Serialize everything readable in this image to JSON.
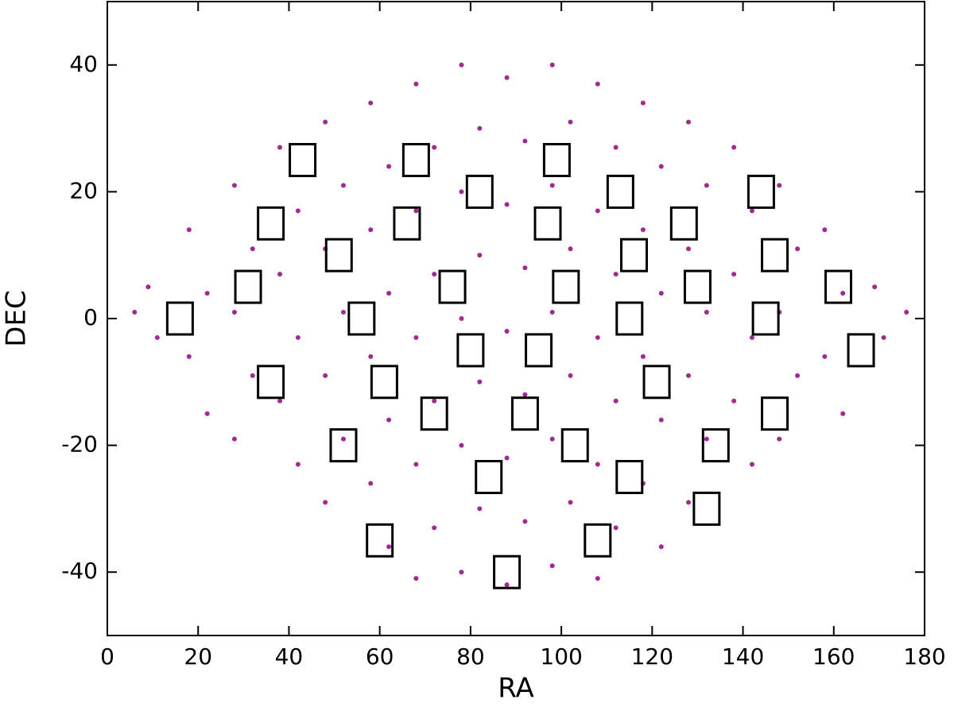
{
  "chart_data": {
    "type": "scatter",
    "x_label": "RA",
    "y_label": "DEC",
    "xlim": [
      0,
      180
    ],
    "ylim": [
      -50,
      50
    ],
    "xticks": [
      0,
      20,
      40,
      60,
      80,
      100,
      120,
      140,
      160,
      180
    ],
    "yticks": [
      -40,
      -20,
      0,
      20,
      40
    ],
    "series": [
      {
        "color": "#a3288f",
        "marker": "dot",
        "x": [
          6,
          9,
          11,
          18,
          22,
          18,
          22,
          28,
          32,
          28,
          32,
          28,
          38,
          42,
          38,
          42,
          38,
          42,
          48,
          52,
          48,
          52,
          48,
          52,
          48,
          58,
          62,
          58,
          62,
          58,
          62,
          58,
          62,
          68,
          72,
          68,
          72,
          68,
          72,
          68,
          72,
          68,
          78,
          82,
          78,
          82,
          78,
          82,
          78,
          82,
          78,
          88,
          92,
          88,
          92,
          88,
          92,
          88,
          92,
          88,
          98,
          102,
          98,
          102,
          98,
          102,
          98,
          102,
          98,
          108,
          112,
          108,
          112,
          108,
          112,
          108,
          112,
          108,
          118,
          122,
          118,
          122,
          118,
          122,
          118,
          122,
          128,
          132,
          128,
          132,
          128,
          132,
          128,
          138,
          142,
          138,
          142,
          138,
          142,
          148,
          152,
          148,
          152,
          148,
          158,
          162,
          158,
          162,
          169,
          171,
          176
        ],
        "values": [
          1,
          5,
          -3,
          14,
          4,
          -6,
          -15,
          21,
          11,
          1,
          -9,
          -19,
          27,
          17,
          7,
          -3,
          -13,
          -23,
          31,
          21,
          11,
          1,
          -9,
          -19,
          -29,
          34,
          24,
          14,
          4,
          -6,
          -16,
          -26,
          -36,
          37,
          27,
          17,
          7,
          -3,
          -13,
          -23,
          -33,
          -41,
          40,
          30,
          20,
          10,
          0,
          -10,
          -20,
          -30,
          -40,
          38,
          28,
          18,
          8,
          -2,
          -12,
          -22,
          -32,
          -42,
          40,
          31,
          21,
          11,
          1,
          -9,
          -19,
          -29,
          -39,
          37,
          27,
          17,
          7,
          -3,
          -13,
          -23,
          -33,
          -41,
          34,
          24,
          14,
          4,
          -6,
          -16,
          -26,
          -36,
          31,
          21,
          11,
          1,
          -9,
          -19,
          -29,
          27,
          17,
          7,
          -3,
          -13,
          -23,
          21,
          11,
          1,
          -9,
          -19,
          14,
          4,
          -6,
          -15,
          5,
          -3,
          1
        ]
      },
      {
        "color": "#000000",
        "marker": "square",
        "x": [
          43,
          68,
          99,
          82,
          113,
          144,
          36,
          66,
          97,
          127,
          51,
          116,
          147,
          31,
          76,
          101,
          130,
          161,
          16,
          56,
          115,
          145,
          80,
          95,
          166,
          36,
          61,
          121,
          72,
          92,
          147,
          52,
          103,
          134,
          84,
          115,
          132,
          60,
          108,
          88
        ],
        "values": [
          25,
          25,
          25,
          20,
          20,
          20,
          15,
          15,
          15,
          15,
          10,
          10,
          10,
          5,
          5,
          5,
          5,
          5,
          0,
          0,
          0,
          0,
          -5,
          -5,
          -5,
          -10,
          -10,
          -10,
          -15,
          -15,
          -15,
          -20,
          -20,
          -20,
          -25,
          -25,
          -30,
          -35,
          -35,
          -40
        ]
      }
    ]
  }
}
